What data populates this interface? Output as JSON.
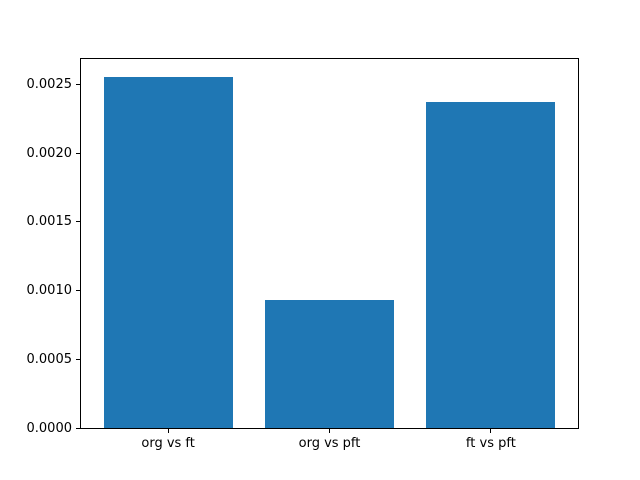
{
  "figure": {
    "background": "#ffffff"
  },
  "chart_data": {
    "type": "bar",
    "categories": [
      "org vs ft",
      "org vs pft",
      "ft vs pft"
    ],
    "values": [
      0.00255,
      0.00093,
      0.00237
    ],
    "title": "",
    "xlabel": "",
    "ylabel": "",
    "ylim": [
      0,
      0.002684
    ],
    "yticks": [
      0.0,
      0.0005,
      0.001,
      0.0015,
      0.002,
      0.0025
    ],
    "ytick_labels": [
      "0.0000",
      "0.0005",
      "0.0010",
      "0.0015",
      "0.0020",
      "0.0025"
    ],
    "bar_width_fraction": 0.8,
    "x_margin_fraction": 0.05,
    "grid": false,
    "legend": "none",
    "bar_color": "#1f77b4",
    "axis_color": "#000000",
    "text_color": "#000000"
  }
}
